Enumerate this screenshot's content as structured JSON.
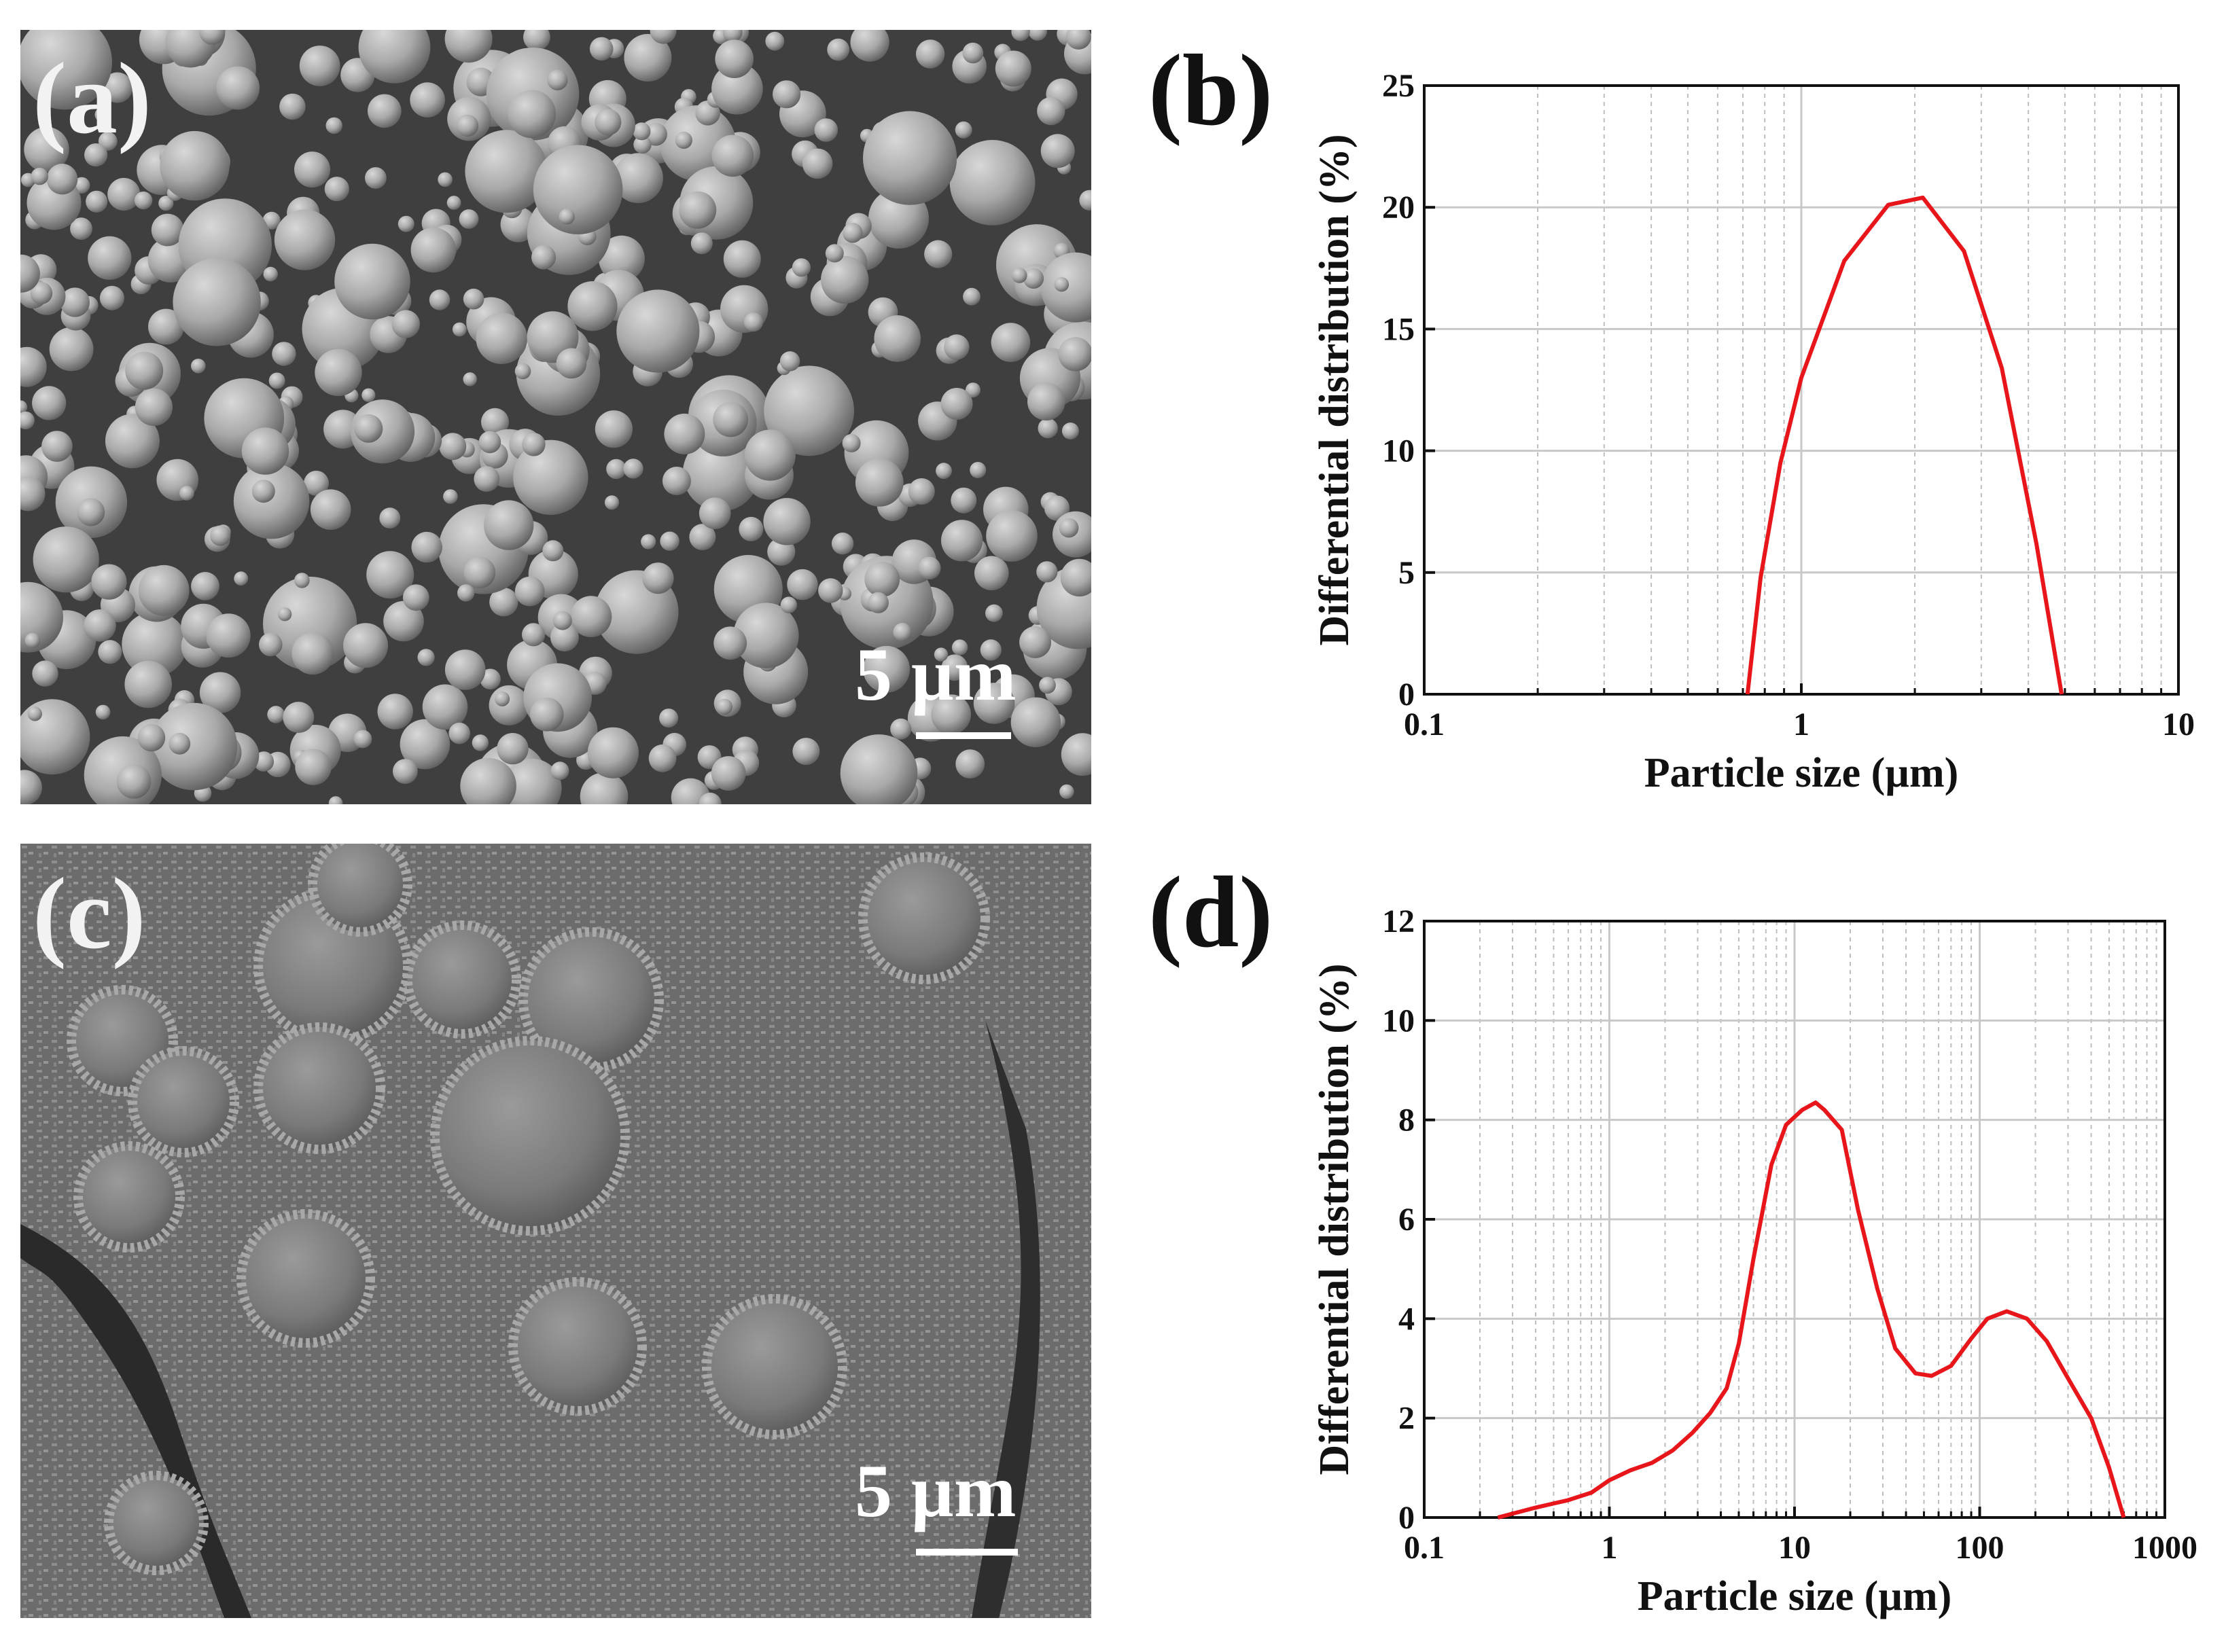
{
  "panels": {
    "a": {
      "label": "(a)",
      "scale_label": "5 µm"
    },
    "b": {
      "label": "(b)"
    },
    "c": {
      "label": "(c)",
      "scale_label": "5 µm"
    },
    "d": {
      "label": "(d)"
    }
  },
  "chart_data": [
    {
      "panel": "b",
      "type": "line",
      "xlabel": "Particle size (µm)",
      "ylabel": "Differential distribution (%)",
      "xscale": "log",
      "xlim": [
        0.1,
        10
      ],
      "ylim": [
        0,
        25
      ],
      "xticks": [
        0.1,
        1,
        10
      ],
      "xtick_labels": [
        "0.1",
        "1",
        "10"
      ],
      "yticks": [
        0,
        5,
        10,
        15,
        20,
        25
      ],
      "ytick_labels": [
        "0",
        "5",
        "10",
        "15",
        "20",
        "25"
      ],
      "grid": true,
      "line_color": "#e8161b",
      "series": [
        {
          "x": [
            0.72,
            0.78,
            0.88,
            1.0,
            1.3,
            1.7,
            2.1,
            2.7,
            3.4,
            4.2,
            4.9
          ],
          "y": [
            0,
            4.8,
            9.5,
            13,
            17.8,
            20.1,
            20.4,
            18.2,
            13.4,
            6.2,
            0
          ]
        }
      ]
    },
    {
      "panel": "d",
      "type": "line",
      "xlabel": "Particle size (µm)",
      "ylabel": "Differential distribution (%)",
      "xscale": "log",
      "xlim": [
        0.1,
        1000
      ],
      "ylim": [
        0,
        12
      ],
      "xticks": [
        0.1,
        1,
        10,
        100,
        1000
      ],
      "xtick_labels": [
        "0.1",
        "1",
        "10",
        "100",
        "1000"
      ],
      "yticks": [
        0,
        2,
        4,
        6,
        8,
        10,
        12
      ],
      "ytick_labels": [
        "0",
        "2",
        "4",
        "6",
        "8",
        "10",
        "12"
      ],
      "grid": true,
      "line_color": "#e8161b",
      "series": [
        {
          "x": [
            0.25,
            0.4,
            0.6,
            0.8,
            1.0,
            1.3,
            1.7,
            2.2,
            2.8,
            3.5,
            4.3,
            5.0,
            6.0,
            7.5,
            9.0,
            11.0,
            13.0,
            14.5,
            18.0,
            22.0,
            28.0,
            35.0,
            45.0,
            55.0,
            70.0,
            90.0,
            110.0,
            140.0,
            180.0,
            230.0,
            300.0,
            400.0,
            500.0,
            600.0
          ],
          "y": [
            0,
            0.2,
            0.35,
            0.5,
            0.75,
            0.95,
            1.1,
            1.35,
            1.7,
            2.1,
            2.6,
            3.5,
            5.2,
            7.1,
            7.9,
            8.2,
            8.35,
            8.2,
            7.8,
            6.2,
            4.6,
            3.4,
            2.9,
            2.85,
            3.05,
            3.6,
            4.0,
            4.15,
            4.0,
            3.55,
            2.8,
            2.0,
            1.0,
            0
          ]
        }
      ]
    }
  ]
}
